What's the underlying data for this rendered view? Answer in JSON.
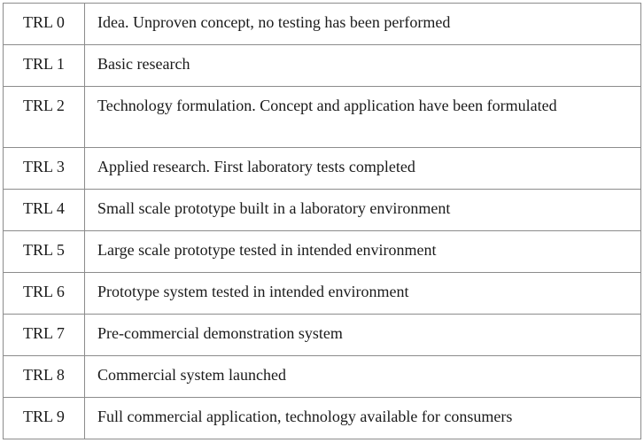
{
  "trl_table": {
    "rows": [
      {
        "level": "TRL 0",
        "description": "Idea. Unproven concept, no testing has been performed"
      },
      {
        "level": "TRL 1",
        "description": "Basic research"
      },
      {
        "level": "TRL 2",
        "description": "Technology formulation. Concept and application have been formulated"
      },
      {
        "level": "TRL 3",
        "description": "Applied research. First laboratory tests completed"
      },
      {
        "level": "TRL 4",
        "description": "Small scale prototype built in a laboratory environment"
      },
      {
        "level": "TRL 5",
        "description": "Large scale prototype tested in intended environment"
      },
      {
        "level": "TRL 6",
        "description": "Prototype system tested in intended environment"
      },
      {
        "level": "TRL 7",
        "description": "Pre-commercial demonstration system"
      },
      {
        "level": "TRL 8",
        "description": "Commercial system launched"
      },
      {
        "level": "TRL 9",
        "description": "Full commercial application, technology available for consumers"
      }
    ]
  }
}
